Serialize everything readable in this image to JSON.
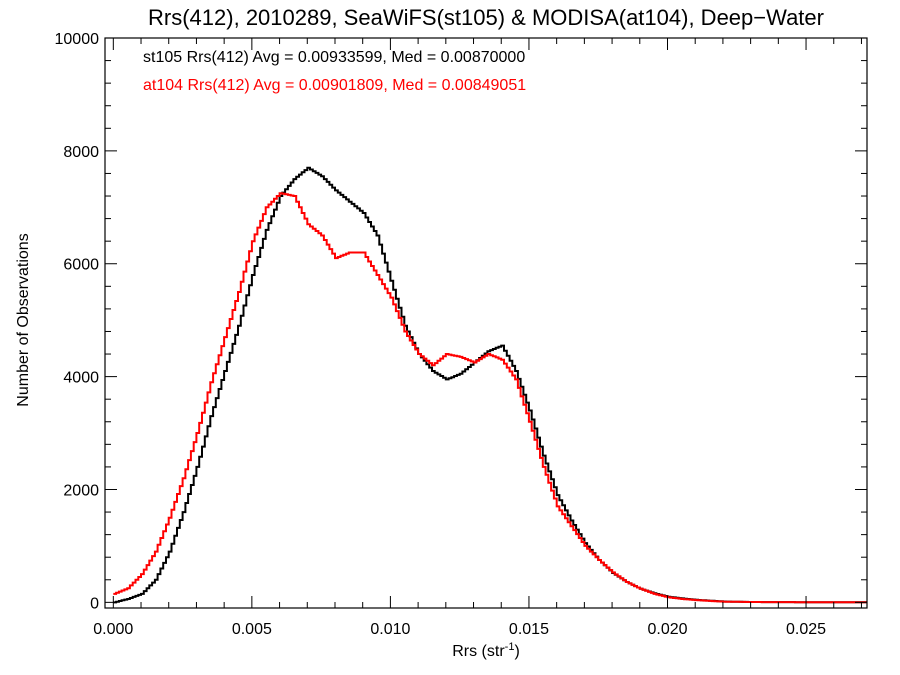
{
  "chart_data": {
    "type": "line",
    "style": "histogram-step",
    "title": "Rrs(412), 2010289, SeaWiFS(st105) & MODISA(at104), Deep−Water",
    "xlabel_main": "Rrs (str",
    "xlabel_sup": "-1",
    "xlabel_close": ")",
    "ylabel": "Number of Observations",
    "xlim": [
      -0.0003,
      0.0272
    ],
    "ylim": [
      -100,
      10000
    ],
    "x_ticks": [
      0.0,
      0.005,
      0.01,
      0.015,
      0.02,
      0.025
    ],
    "x_tick_labels": [
      "0.000",
      "0.005",
      "0.010",
      "0.015",
      "0.020",
      "0.025"
    ],
    "x_minor_step": 0.001,
    "y_ticks": [
      0,
      2000,
      4000,
      6000,
      8000,
      10000
    ],
    "y_tick_labels": [
      "0",
      "2000",
      "4000",
      "6000",
      "8000",
      "10000"
    ],
    "y_minor_step": 400,
    "grid": false,
    "legend_position": "top-left",
    "legend": [
      {
        "text": "st105 Rrs(412) Avg = 0.00933599, Med = 0.00870000",
        "color": "#000000"
      },
      {
        "text": "at104 Rrs(412) Avg = 0.00901809, Med = 0.00849051",
        "color": "#ff0000"
      }
    ],
    "series": [
      {
        "name": "st105",
        "color": "#000000",
        "points": [
          [
            0.0,
            0
          ],
          [
            0.0005,
            60
          ],
          [
            0.001,
            150
          ],
          [
            0.0015,
            400
          ],
          [
            0.002,
            900
          ],
          [
            0.0025,
            1600
          ],
          [
            0.003,
            2400
          ],
          [
            0.0035,
            3300
          ],
          [
            0.004,
            4100
          ],
          [
            0.0045,
            4900
          ],
          [
            0.005,
            5800
          ],
          [
            0.0055,
            6600
          ],
          [
            0.006,
            7200
          ],
          [
            0.0065,
            7500
          ],
          [
            0.007,
            7700
          ],
          [
            0.0075,
            7550
          ],
          [
            0.008,
            7300
          ],
          [
            0.0085,
            7100
          ],
          [
            0.009,
            6900
          ],
          [
            0.0095,
            6500
          ],
          [
            0.01,
            5700
          ],
          [
            0.0105,
            4900
          ],
          [
            0.011,
            4400
          ],
          [
            0.0115,
            4100
          ],
          [
            0.012,
            3950
          ],
          [
            0.0125,
            4050
          ],
          [
            0.013,
            4250
          ],
          [
            0.0135,
            4450
          ],
          [
            0.014,
            4550
          ],
          [
            0.0145,
            4100
          ],
          [
            0.015,
            3400
          ],
          [
            0.0155,
            2600
          ],
          [
            0.016,
            1900
          ],
          [
            0.0165,
            1450
          ],
          [
            0.017,
            1050
          ],
          [
            0.0175,
            750
          ],
          [
            0.018,
            520
          ],
          [
            0.0185,
            360
          ],
          [
            0.019,
            240
          ],
          [
            0.0195,
            160
          ],
          [
            0.02,
            100
          ],
          [
            0.0205,
            70
          ],
          [
            0.021,
            45
          ],
          [
            0.0215,
            30
          ],
          [
            0.022,
            15
          ],
          [
            0.023,
            6
          ],
          [
            0.025,
            3
          ],
          [
            0.027,
            1
          ]
        ]
      },
      {
        "name": "at104",
        "color": "#ff0000",
        "points": [
          [
            0.0,
            150
          ],
          [
            0.0005,
            250
          ],
          [
            0.001,
            500
          ],
          [
            0.0015,
            900
          ],
          [
            0.002,
            1500
          ],
          [
            0.0025,
            2200
          ],
          [
            0.003,
            3000
          ],
          [
            0.0035,
            3900
          ],
          [
            0.004,
            4700
          ],
          [
            0.0045,
            5500
          ],
          [
            0.005,
            6400
          ],
          [
            0.0055,
            7000
          ],
          [
            0.006,
            7250
          ],
          [
            0.0065,
            7200
          ],
          [
            0.007,
            6700
          ],
          [
            0.0075,
            6500
          ],
          [
            0.008,
            6100
          ],
          [
            0.0085,
            6200
          ],
          [
            0.009,
            6200
          ],
          [
            0.0095,
            5800
          ],
          [
            0.01,
            5400
          ],
          [
            0.0105,
            4800
          ],
          [
            0.011,
            4400
          ],
          [
            0.0115,
            4200
          ],
          [
            0.012,
            4400
          ],
          [
            0.0125,
            4350
          ],
          [
            0.013,
            4250
          ],
          [
            0.0135,
            4400
          ],
          [
            0.014,
            4300
          ],
          [
            0.0145,
            3950
          ],
          [
            0.015,
            3200
          ],
          [
            0.0155,
            2400
          ],
          [
            0.016,
            1700
          ],
          [
            0.0165,
            1350
          ],
          [
            0.017,
            1000
          ],
          [
            0.0175,
            750
          ],
          [
            0.018,
            530
          ],
          [
            0.0185,
            360
          ],
          [
            0.019,
            240
          ],
          [
            0.0195,
            150
          ],
          [
            0.02,
            90
          ],
          [
            0.0205,
            60
          ],
          [
            0.021,
            40
          ],
          [
            0.0215,
            25
          ],
          [
            0.022,
            12
          ],
          [
            0.023,
            6
          ],
          [
            0.025,
            3
          ],
          [
            0.027,
            1
          ]
        ]
      }
    ]
  }
}
